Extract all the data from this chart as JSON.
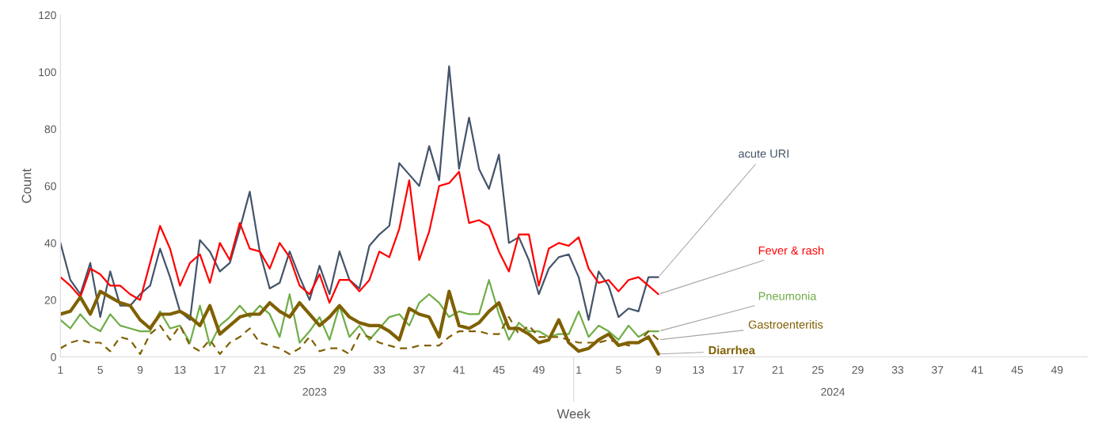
{
  "chart_data": {
    "type": "line",
    "xlabel": "Week",
    "ylabel": "Count",
    "categories": [
      "1",
      null,
      null,
      null,
      "5",
      null,
      null,
      null,
      "9",
      null,
      null,
      null,
      "13",
      null,
      null,
      null,
      "17",
      null,
      null,
      null,
      "21",
      null,
      null,
      null,
      "25",
      null,
      null,
      null,
      "29",
      null,
      null,
      null,
      "33",
      null,
      null,
      null,
      "37",
      null,
      null,
      null,
      "41",
      null,
      null,
      null,
      "45",
      null,
      null,
      null,
      "49",
      null,
      null,
      null,
      "1",
      null,
      null,
      null,
      "5",
      null,
      null,
      null,
      "9",
      null,
      null,
      null,
      "13",
      null,
      null,
      null,
      "17",
      null,
      null,
      null,
      "21",
      null,
      null,
      null,
      "25",
      null,
      null,
      null,
      "29",
      null,
      null,
      null,
      "33",
      null,
      null,
      null,
      "37",
      null,
      null,
      null,
      "41",
      null,
      null,
      null,
      "45",
      null,
      null,
      null,
      "49",
      null,
      null,
      null
    ],
    "annotations": [
      "2023",
      "2024"
    ],
    "ylim": [
      0,
      120
    ],
    "yticks": [
      0,
      20,
      40,
      60,
      80,
      100,
      120
    ],
    "grid": false,
    "legend": false,
    "marker": "none",
    "series": [
      {
        "name": "acute URI",
        "color": "#44546a",
        "line_style": "solid",
        "values": [
          40,
          27,
          22,
          33,
          14,
          30,
          18,
          18,
          22,
          25,
          38,
          28,
          16,
          13,
          41,
          37,
          30,
          33,
          45,
          58,
          37,
          24,
          26,
          37,
          28,
          20,
          32,
          22,
          37,
          27,
          24,
          39,
          43,
          46,
          68,
          64,
          60,
          74,
          62,
          102,
          66,
          84,
          66,
          59,
          71,
          40,
          42,
          34,
          22,
          31,
          35,
          36,
          28,
          13,
          30,
          25,
          14,
          17,
          16,
          28,
          28,
          null,
          null,
          null,
          null,
          null,
          null,
          null,
          null,
          null,
          null,
          null,
          null,
          null,
          null,
          null,
          null,
          null,
          null,
          null,
          null,
          null,
          null,
          null,
          null,
          null,
          null,
          null,
          null,
          null,
          null,
          null,
          null,
          null,
          null,
          null,
          null,
          null,
          null,
          null,
          null,
          null,
          null,
          null
        ]
      },
      {
        "name": "Fever & rash",
        "color": "#ff0000",
        "line_style": "solid",
        "values": [
          28,
          25,
          21,
          31,
          29,
          25,
          25,
          22,
          20,
          33,
          46,
          38,
          25,
          33,
          36,
          26,
          40,
          34,
          47,
          38,
          37,
          31,
          40,
          35,
          25,
          22,
          29,
          19,
          27,
          27,
          23,
          27,
          37,
          35,
          45,
          62,
          34,
          44,
          60,
          61,
          65,
          47,
          48,
          46,
          37,
          30,
          43,
          43,
          25,
          38,
          40,
          39,
          42,
          31,
          26,
          27,
          23,
          27,
          28,
          25,
          22,
          null,
          null,
          null,
          null,
          null,
          null,
          null,
          null,
          null,
          null,
          null,
          null,
          null,
          null,
          null,
          null,
          null,
          null,
          null,
          null,
          null,
          null,
          null,
          null,
          null,
          null,
          null,
          null,
          null,
          null,
          null,
          null,
          null,
          null,
          null,
          null,
          null,
          null,
          null,
          null,
          null,
          null,
          null
        ]
      },
      {
        "name": "Pneumonia",
        "color": "#70ad47",
        "line_style": "solid",
        "values": [
          13,
          10,
          15,
          11,
          9,
          15,
          11,
          10,
          9,
          9,
          16,
          10,
          11,
          5,
          18,
          4,
          11,
          14,
          18,
          14,
          18,
          15,
          7,
          22,
          5,
          9,
          14,
          6,
          18,
          7,
          11,
          6,
          10,
          14,
          15,
          11,
          19,
          22,
          19,
          14,
          16,
          15,
          15,
          27,
          15,
          6,
          12,
          9,
          9,
          7,
          8,
          8,
          16,
          7,
          11,
          9,
          6,
          11,
          7,
          9,
          9,
          null,
          null,
          null,
          null,
          null,
          null,
          null,
          null,
          null,
          null,
          null,
          null,
          null,
          null,
          null,
          null,
          null,
          null,
          null,
          null,
          null,
          null,
          null,
          null,
          null,
          null,
          null,
          null,
          null,
          null,
          null,
          null,
          null,
          null,
          null,
          null,
          null,
          null,
          null,
          null,
          null,
          null,
          null
        ]
      },
      {
        "name": "Gastroenteritis",
        "color": "#806000",
        "line_style": "dashed",
        "values": [
          3,
          5,
          6,
          5,
          5,
          2,
          7,
          6,
          1,
          8,
          11,
          6,
          11,
          4,
          2,
          6,
          1,
          5,
          7,
          10,
          5,
          4,
          3,
          1,
          3,
          7,
          2,
          3,
          3,
          1,
          8,
          7,
          5,
          4,
          3,
          3,
          4,
          4,
          4,
          7,
          9,
          9,
          9,
          8,
          8,
          14,
          8,
          11,
          7,
          7,
          7,
          6,
          5,
          5,
          5,
          6,
          5,
          4,
          5,
          9,
          6,
          null,
          null,
          null,
          null,
          null,
          null,
          null,
          null,
          null,
          null,
          null,
          null,
          null,
          null,
          null,
          null,
          null,
          null,
          null,
          null,
          null,
          null,
          null,
          null,
          null,
          null,
          null,
          null,
          null,
          null,
          null,
          null,
          null,
          null,
          null,
          null,
          null,
          null,
          null,
          null,
          null,
          null,
          null
        ]
      },
      {
        "name": "Diarrhea",
        "color": "#7f6000",
        "line_style": "solid",
        "values": [
          15,
          16,
          21,
          15,
          23,
          21,
          19,
          18,
          13,
          10,
          15,
          15,
          16,
          14,
          11,
          18,
          8,
          11,
          14,
          15,
          15,
          19,
          16,
          14,
          19,
          15,
          11,
          14,
          18,
          14,
          12,
          11,
          11,
          9,
          6,
          17,
          15,
          14,
          7,
          23,
          11,
          10,
          12,
          16,
          19,
          10,
          10,
          8,
          5,
          6,
          13,
          5,
          2,
          3,
          6,
          8,
          4,
          5,
          5,
          7,
          1,
          null,
          null,
          null,
          null,
          null,
          null,
          null,
          null,
          null,
          null,
          null,
          null,
          null,
          null,
          null,
          null,
          null,
          null,
          null,
          null,
          null,
          null,
          null,
          null,
          null,
          null,
          null,
          null,
          null,
          null,
          null,
          null,
          null,
          null,
          null,
          null,
          null,
          null,
          null,
          null,
          null,
          null,
          null
        ]
      }
    ]
  }
}
